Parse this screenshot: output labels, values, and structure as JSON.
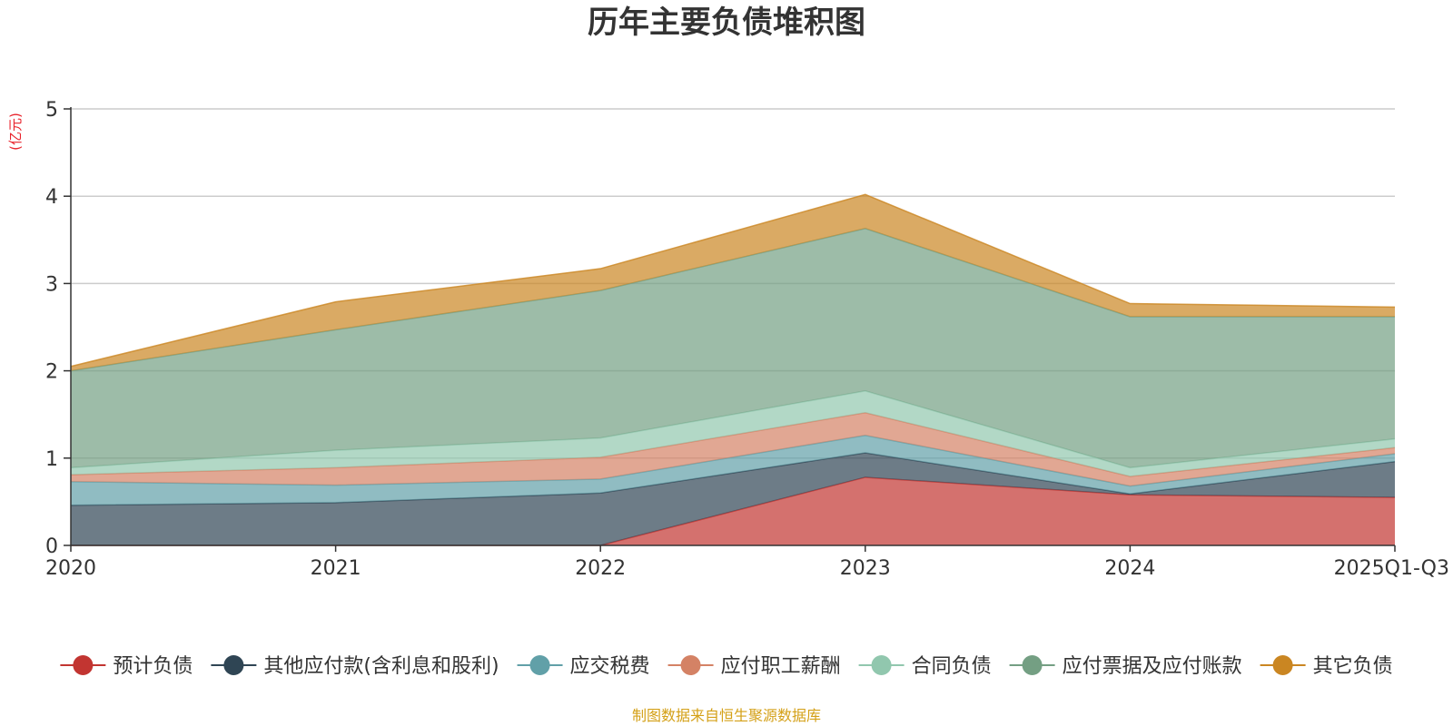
{
  "chart_data": {
    "type": "area",
    "stacked": true,
    "title": "历年主要负债堆积图",
    "ylabel": "(亿元)",
    "xlabel": "",
    "ylim": [
      0,
      5
    ],
    "yticks": [
      "0",
      "1",
      "2",
      "3",
      "4",
      "5"
    ],
    "categories": [
      "2020",
      "2021",
      "2022",
      "2023",
      "2024",
      "2025Q1-Q3"
    ],
    "grid": true,
    "legend_position": "bottom",
    "series": [
      {
        "name": "预计负债",
        "color": "#c23531",
        "values": [
          0,
          0,
          0,
          0.78,
          0.58,
          0.55
        ]
      },
      {
        "name": "其他应付款(含利息和股利)",
        "color": "#2f4554",
        "values": [
          0.46,
          0.49,
          0.6,
          0.28,
          0.01,
          0.41
        ]
      },
      {
        "name": "应交税费",
        "color": "#61a0a8",
        "values": [
          0.27,
          0.2,
          0.16,
          0.2,
          0.09,
          0.09
        ]
      },
      {
        "name": "应付职工薪酬",
        "color": "#d48265",
        "values": [
          0.08,
          0.2,
          0.25,
          0.26,
          0.11,
          0.07
        ]
      },
      {
        "name": "合同负债",
        "color": "#91c7ae",
        "values": [
          0.08,
          0.2,
          0.22,
          0.25,
          0.1,
          0.1
        ]
      },
      {
        "name": "应付票据及应付账款",
        "color": "#749f83",
        "values": [
          1.11,
          1.38,
          1.69,
          1.86,
          1.73,
          1.4
        ]
      },
      {
        "name": "其它负债",
        "color": "#ca8622",
        "values": [
          0.05,
          0.32,
          0.25,
          0.39,
          0.15,
          0.11
        ]
      }
    ]
  },
  "source": {
    "text": "制图数据来自恒生聚源数据库",
    "color": "#d4a017"
  },
  "unit_color": "#e8222b"
}
